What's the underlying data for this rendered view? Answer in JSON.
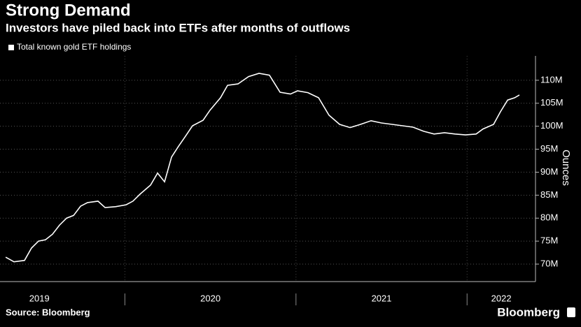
{
  "chart_data": {
    "type": "line",
    "title": "Strong Demand",
    "subtitle": "Investors have piled back into ETFs after months of outflows",
    "y_label": "Ounces",
    "source": "Source: Bloomberg",
    "brand": "Bloomberg",
    "grid": true,
    "xlim": [
      2019.27,
      2022.4
    ],
    "xticks": [
      {
        "value": 2019.5,
        "label": "2019"
      },
      {
        "value": 2020.5,
        "label": "2020"
      },
      {
        "value": 2021.5,
        "label": "2021"
      },
      {
        "value": 2022.2,
        "label": "2022"
      }
    ],
    "ylim": [
      66.2,
      115.3
    ],
    "yticks": [
      {
        "value": 70,
        "label": "70M"
      },
      {
        "value": 75,
        "label": "75M"
      },
      {
        "value": 80,
        "label": "80M"
      },
      {
        "value": 85,
        "label": "85M"
      },
      {
        "value": 90,
        "label": "90M"
      },
      {
        "value": 95,
        "label": "95M"
      },
      {
        "value": 100,
        "label": "100M"
      },
      {
        "value": 105,
        "label": "105M"
      },
      {
        "value": 110,
        "label": "110M"
      }
    ],
    "x": [
      2019.303,
      2019.352,
      2019.413,
      2019.454,
      2019.495,
      2019.536,
      2019.577,
      2019.618,
      2019.659,
      2019.7,
      2019.741,
      2019.782,
      2019.843,
      2019.884,
      2019.945,
      2020.007,
      2020.047,
      2020.088,
      2020.15,
      2020.191,
      2020.232,
      2020.273,
      2020.313,
      2020.354,
      2020.395,
      2020.457,
      2020.498,
      2020.559,
      2020.6,
      2020.661,
      2020.723,
      2020.784,
      2020.845,
      2020.907,
      2020.968,
      2021.009,
      2021.07,
      2021.132,
      2021.193,
      2021.255,
      2021.316,
      2021.377,
      2021.439,
      2021.5,
      2021.562,
      2021.623,
      2021.684,
      2021.746,
      2021.807,
      2021.868,
      2021.93,
      2021.991,
      2022.053,
      2022.093,
      2022.155,
      2022.196,
      2022.237,
      2022.278,
      2022.306
    ],
    "series": [
      {
        "name": "Total known gold ETF holdings",
        "color": "#ffffff",
        "values": [
          71.5,
          70.5,
          70.8,
          73.5,
          75,
          75.3,
          76.5,
          78.5,
          80,
          80.6,
          82.6,
          83.4,
          83.7,
          82.3,
          82.5,
          82.9,
          83.7,
          85.2,
          87.2,
          89.8,
          87.9,
          93.3,
          95.6,
          97.8,
          100.1,
          101.3,
          103.5,
          106.2,
          108.9,
          109.2,
          110.8,
          111.5,
          111.1,
          107.4,
          107,
          107.7,
          107.3,
          106.2,
          102.4,
          100.4,
          99.7,
          100.4,
          101.2,
          100.7,
          100.4,
          100.1,
          99.8,
          98.9,
          98.3,
          98.6,
          98.3,
          98.1,
          98.3,
          99.4,
          100.4,
          103.2,
          105.7,
          106.2,
          106.8
        ]
      }
    ]
  }
}
